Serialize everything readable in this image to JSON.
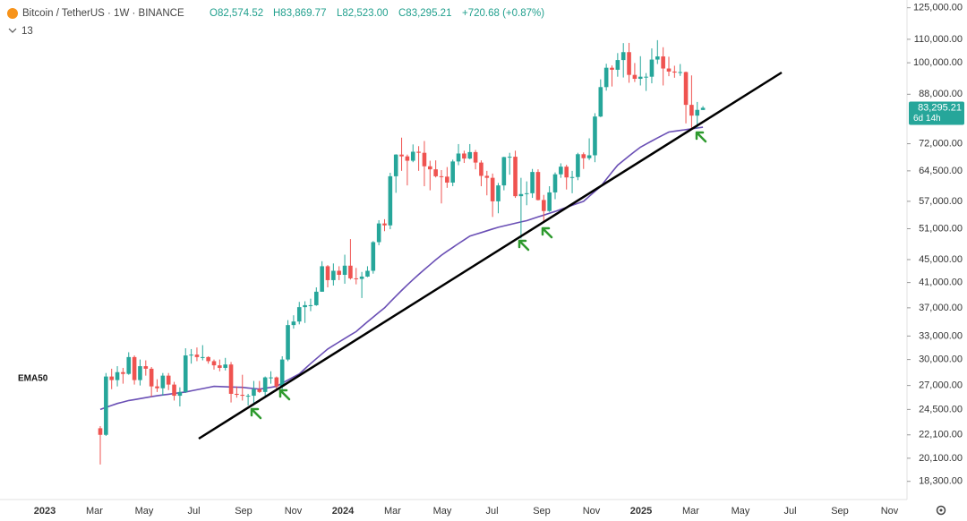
{
  "chart_data": {
    "type": "candlestick",
    "title": "Bitcoin / TetherUS · 1W · BINANCE",
    "ohlc_labels": [
      "O82,574.52",
      "H83,869.77",
      "L82,523.00",
      "C83,295.21",
      "+720.68 (+0.87%)"
    ],
    "indicator_count": "13",
    "log_scale": true,
    "up_color": "#26a69a",
    "down_color": "#ef5350",
    "x_labels": [
      "2023",
      "Mar",
      "May",
      "Jul",
      "Sep",
      "Nov",
      "2024",
      "Mar",
      "May",
      "Jul",
      "Sep",
      "Nov",
      "2025",
      "Mar",
      "May",
      "Jul",
      "Sep",
      "Nov"
    ],
    "ylim": [
      17000,
      129000
    ],
    "yticks": [
      {
        "value": 125000,
        "label": "125,000.00"
      },
      {
        "value": 110000,
        "label": "110,000.00"
      },
      {
        "value": 100000,
        "label": "100,000.00"
      },
      {
        "value": 88000,
        "label": "88,000.00"
      },
      {
        "value": 72000,
        "label": "72,000.00"
      },
      {
        "value": 64500,
        "label": "64,500.00"
      },
      {
        "value": 57000,
        "label": "57,000.00"
      },
      {
        "value": 51000,
        "label": "51,000.00"
      },
      {
        "value": 45000,
        "label": "45,000.00"
      },
      {
        "value": 41000,
        "label": "41,000.00"
      },
      {
        "value": 37000,
        "label": "37,000.00"
      },
      {
        "value": 33000,
        "label": "33,000.00"
      },
      {
        "value": 30000,
        "label": "30,000.00"
      },
      {
        "value": 27000,
        "label": "27,000.00"
      },
      {
        "value": 24500,
        "label": "24,500.00"
      },
      {
        "value": 22100,
        "label": "22,100.00"
      },
      {
        "value": 20100,
        "label": "20,100.00"
      },
      {
        "value": 18300,
        "label": "18,300.00"
      }
    ],
    "last_label": "83,295.21",
    "countdown": "6d 14h",
    "open": [
      22700,
      22100,
      28000,
      27600,
      28500,
      28300,
      30300,
      27600,
      29200,
      28900,
      26900,
      26700,
      28100,
      27100,
      25900,
      26300,
      30500,
      30600,
      30300,
      30300,
      29800,
      29300,
      29000,
      29400,
      26100,
      26000,
      25900,
      25900,
      26600,
      26300,
      27900,
      27900,
      26900,
      30000,
      34500,
      35000,
      37100,
      37400,
      37400,
      39500,
      43800,
      41400,
      43000,
      42300,
      43900,
      41700,
      41600,
      42000,
      43000,
      48300,
      52100,
      51700,
      63100,
      68900,
      68400,
      67200,
      69700,
      69400,
      65700,
      64900,
      63100,
      63000,
      61500,
      67000,
      69200,
      67800,
      69600,
      66700,
      63200,
      62700,
      57000,
      60800,
      68200,
      68300,
      58200,
      58700,
      58900,
      64200,
      57300,
      54800,
      59100,
      63600,
      65600,
      62800,
      62900,
      69000,
      67900,
      68700,
      80400,
      90600,
      98000,
      97200,
      101100,
      104400,
      95200,
      93700,
      94500,
      94500,
      101300,
      102600,
      97700,
      96500,
      96100,
      96300,
      84300,
      80700,
      82574.52
    ],
    "high": [
      22900,
      28400,
      28900,
      29200,
      29000,
      30900,
      30500,
      30000,
      29900,
      29100,
      27700,
      28400,
      28400,
      27400,
      26800,
      31400,
      31300,
      31500,
      31800,
      30400,
      30000,
      30000,
      30200,
      29700,
      26900,
      28200,
      26100,
      27500,
      27500,
      28000,
      28600,
      28000,
      30400,
      35200,
      35900,
      37900,
      38000,
      38400,
      40200,
      44700,
      44000,
      44300,
      43800,
      45900,
      48900,
      43500,
      42800,
      43800,
      48500,
      52800,
      53000,
      64000,
      69000,
      73800,
      68900,
      71800,
      71300,
      72800,
      67200,
      67300,
      64700,
      65500,
      67500,
      71900,
      70000,
      71900,
      70200,
      67300,
      64500,
      63800,
      61400,
      68300,
      69400,
      70000,
      62700,
      61800,
      65000,
      64900,
      58500,
      60600,
      64100,
      66500,
      66100,
      64500,
      69400,
      69500,
      73600,
      81500,
      93500,
      99600,
      98900,
      104000,
      108300,
      108400,
      99900,
      102700,
      95900,
      106000,
      109600,
      106500,
      102500,
      98800,
      99500,
      96500,
      95000,
      85300,
      83869.77
    ],
    "low": [
      19600,
      22000,
      26600,
      26900,
      27200,
      28200,
      27100,
      27000,
      28100,
      25800,
      26300,
      25900,
      26500,
      25400,
      24800,
      26200,
      29500,
      29800,
      29900,
      29500,
      28800,
      28600,
      28700,
      25200,
      25700,
      25400,
      24900,
      24900,
      26200,
      25900,
      27200,
      26500,
      26600,
      29800,
      34000,
      34600,
      34800,
      36500,
      37300,
      39500,
      40200,
      40500,
      41400,
      40800,
      41500,
      40700,
      38500,
      41900,
      42500,
      47700,
      50500,
      50900,
      59000,
      64500,
      60800,
      66800,
      64500,
      60600,
      59600,
      62800,
      56500,
      60200,
      60600,
      66000,
      66600,
      67600,
      64900,
      60600,
      58400,
      53500,
      54300,
      59600,
      63500,
      57800,
      49000,
      56100,
      57800,
      57200,
      52500,
      54600,
      57500,
      62700,
      59800,
      58900,
      62100,
      65000,
      67400,
      66800,
      80200,
      89300,
      90800,
      94500,
      94200,
      92200,
      92500,
      91200,
      89200,
      92000,
      99500,
      91200,
      94700,
      94100,
      94800,
      78200,
      76600,
      76600,
      82523.0
    ],
    "close": [
      22100,
      28000,
      27600,
      28500,
      28300,
      30300,
      27600,
      29200,
      28900,
      26900,
      26700,
      28100,
      27100,
      25900,
      26300,
      30500,
      30600,
      30300,
      30300,
      29800,
      29300,
      29000,
      29400,
      26100,
      26000,
      25900,
      25900,
      26600,
      26300,
      27900,
      27900,
      26900,
      30000,
      34500,
      35000,
      37100,
      37400,
      37400,
      39500,
      43800,
      41400,
      43000,
      42300,
      43900,
      41700,
      41600,
      42000,
      43000,
      48300,
      52100,
      51700,
      63100,
      68900,
      68400,
      67200,
      69700,
      69400,
      65700,
      64900,
      63100,
      63000,
      61500,
      67000,
      69200,
      67800,
      69600,
      66700,
      63200,
      62700,
      57000,
      60800,
      68200,
      68300,
      58200,
      58700,
      58900,
      64200,
      57300,
      54800,
      59100,
      63600,
      65600,
      62800,
      62900,
      69000,
      67900,
      68700,
      80400,
      90600,
      98000,
      97200,
      101100,
      104400,
      95200,
      93700,
      94500,
      94500,
      101300,
      102600,
      97700,
      96500,
      96100,
      96300,
      84300,
      80700,
      82600,
      83295.21
    ],
    "ema": {
      "name": "EMA50",
      "color": "#6a4fb5",
      "values": [
        24500,
        24700,
        24900,
        25100,
        25250,
        25400,
        25500,
        25600,
        25700,
        25800,
        25900,
        25980,
        26060,
        26140,
        26220,
        26300,
        26420,
        26540,
        26660,
        26780,
        26900,
        26880,
        26860,
        26840,
        26820,
        26800,
        26730,
        26670,
        26600,
        26700,
        26800,
        26900,
        27250,
        27600,
        27950,
        28300,
        28900,
        29500,
        30100,
        30700,
        31300,
        31760,
        32220,
        32680,
        33140,
        33600,
        34280,
        34960,
        35640,
        36320,
        37000,
        37900,
        38800,
        39700,
        40600,
        41500,
        42360,
        43220,
        44080,
        44940,
        45800,
        46540,
        47280,
        48020,
        48760,
        49500,
        49860,
        50220,
        50580,
        50940,
        51300,
        51580,
        51860,
        52140,
        52420,
        52700,
        53100,
        53500,
        53900,
        54300,
        54700,
        55160,
        55620,
        56080,
        56540,
        57000,
        58170,
        59340,
        60500,
        62330,
        64170,
        66000,
        67250,
        68500,
        69750,
        71000,
        71900,
        72800,
        73700,
        74600,
        75500,
        75750,
        76000,
        76250,
        76500,
        76750,
        77000
      ]
    }
  }
}
